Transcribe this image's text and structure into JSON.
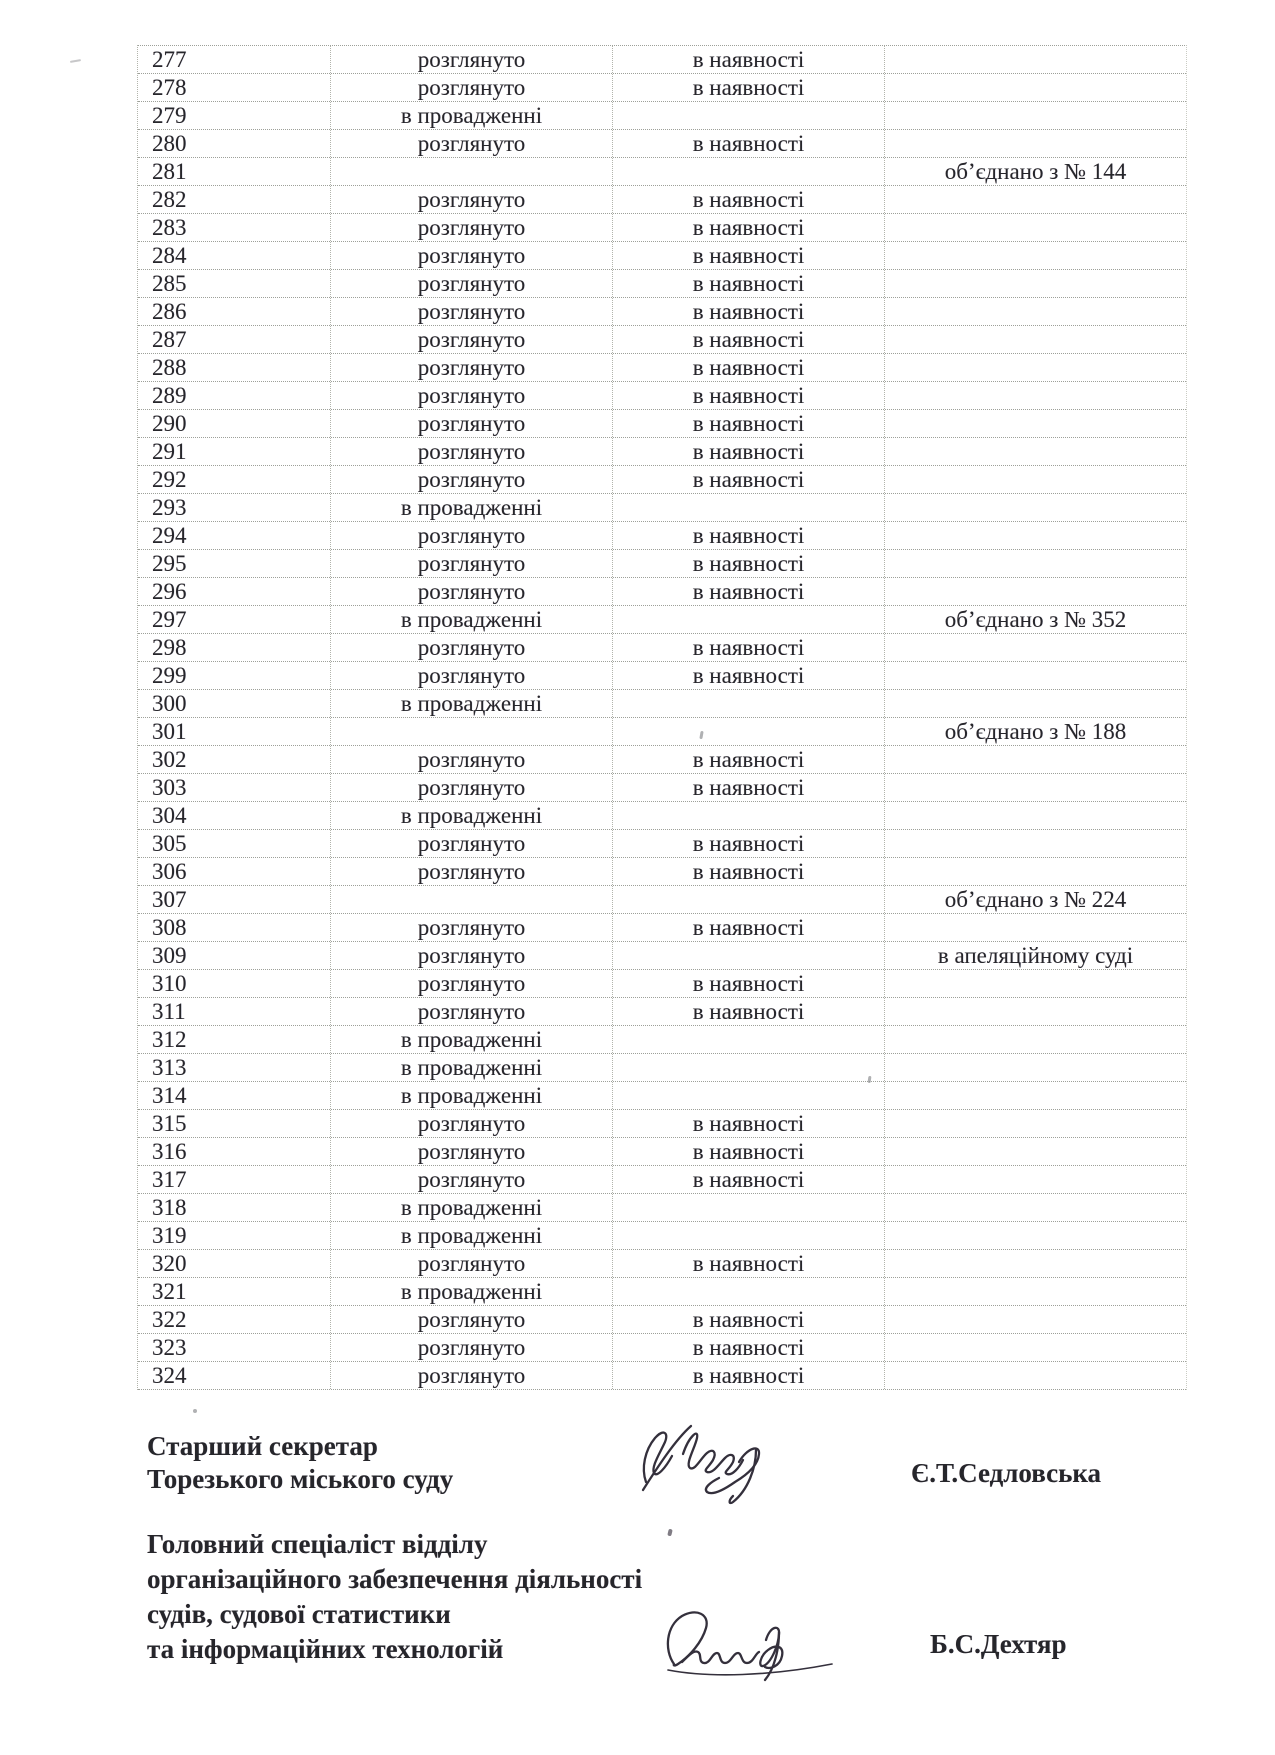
{
  "ink_color": "#26262b",
  "grid_color": "#9da099",
  "table": {
    "rows": [
      {
        "num": "277",
        "status": "розглянуто",
        "availability": "в наявності",
        "note": ""
      },
      {
        "num": "278",
        "status": "розглянуто",
        "availability": "в наявності",
        "note": ""
      },
      {
        "num": "279",
        "status": "в провадженні",
        "availability": "",
        "note": ""
      },
      {
        "num": "280",
        "status": "розглянуто",
        "availability": "в наявності",
        "note": ""
      },
      {
        "num": "281",
        "status": "",
        "availability": "",
        "note": "об’єднано з № 144"
      },
      {
        "num": "282",
        "status": "розглянуто",
        "availability": "в наявності",
        "note": ""
      },
      {
        "num": "283",
        "status": "розглянуто",
        "availability": "в наявності",
        "note": ""
      },
      {
        "num": "284",
        "status": "розглянуто",
        "availability": "в наявності",
        "note": ""
      },
      {
        "num": "285",
        "status": "розглянуто",
        "availability": "в наявності",
        "note": ""
      },
      {
        "num": "286",
        "status": "розглянуто",
        "availability": "в наявності",
        "note": ""
      },
      {
        "num": "287",
        "status": "розглянуто",
        "availability": "в наявності",
        "note": ""
      },
      {
        "num": "288",
        "status": "розглянуто",
        "availability": "в наявності",
        "note": ""
      },
      {
        "num": "289",
        "status": "розглянуто",
        "availability": "в наявності",
        "note": ""
      },
      {
        "num": "290",
        "status": "розглянуто",
        "availability": "в наявності",
        "note": ""
      },
      {
        "num": "291",
        "status": "розглянуто",
        "availability": "в наявності",
        "note": ""
      },
      {
        "num": "292",
        "status": "розглянуто",
        "availability": "в наявності",
        "note": ""
      },
      {
        "num": "293",
        "status": "в провадженні",
        "availability": "",
        "note": ""
      },
      {
        "num": "294",
        "status": "розглянуто",
        "availability": "в наявності",
        "note": ""
      },
      {
        "num": "295",
        "status": "розглянуто",
        "availability": "в наявності",
        "note": ""
      },
      {
        "num": "296",
        "status": "розглянуто",
        "availability": "в наявності",
        "note": ""
      },
      {
        "num": "297",
        "status": "в провадженні",
        "availability": "",
        "note": "об’єднано з № 352"
      },
      {
        "num": "298",
        "status": "розглянуто",
        "availability": "в наявності",
        "note": ""
      },
      {
        "num": "299",
        "status": "розглянуто",
        "availability": "в наявності",
        "note": ""
      },
      {
        "num": "300",
        "status": "в провадженні",
        "availability": "",
        "note": ""
      },
      {
        "num": "301",
        "status": "",
        "availability": "",
        "note": "об’єднано з № 188"
      },
      {
        "num": "302",
        "status": "розглянуто",
        "availability": "в наявності",
        "note": ""
      },
      {
        "num": "303",
        "status": "розглянуто",
        "availability": "в наявності",
        "note": ""
      },
      {
        "num": "304",
        "status": "в провадженні",
        "availability": "",
        "note": ""
      },
      {
        "num": "305",
        "status": "розглянуто",
        "availability": "в наявності",
        "note": ""
      },
      {
        "num": "306",
        "status": "розглянуто",
        "availability": "в наявності",
        "note": ""
      },
      {
        "num": "307",
        "status": "",
        "availability": "",
        "note": "об’єднано з № 224"
      },
      {
        "num": "308",
        "status": "розглянуто",
        "availability": "в наявності",
        "note": ""
      },
      {
        "num": "309",
        "status": "розглянуто",
        "availability": "",
        "note": "в апеляційному суді"
      },
      {
        "num": "310",
        "status": "розглянуто",
        "availability": "в наявності",
        "note": ""
      },
      {
        "num": "311",
        "status": "розглянуто",
        "availability": "в наявності",
        "note": ""
      },
      {
        "num": "312",
        "status": "в провадженні",
        "availability": "",
        "note": ""
      },
      {
        "num": "313",
        "status": "в провадженні",
        "availability": "",
        "note": ""
      },
      {
        "num": "314",
        "status": "в провадженні",
        "availability": "",
        "note": ""
      },
      {
        "num": "315",
        "status": "розглянуто",
        "availability": "в наявності",
        "note": ""
      },
      {
        "num": "316",
        "status": "розглянуто",
        "availability": "в наявності",
        "note": ""
      },
      {
        "num": "317",
        "status": "розглянуто",
        "availability": "в наявності",
        "note": ""
      },
      {
        "num": "318",
        "status": "в провадженні",
        "availability": "",
        "note": ""
      },
      {
        "num": "319",
        "status": "в провадженні",
        "availability": "",
        "note": ""
      },
      {
        "num": "320",
        "status": "розглянуто",
        "availability": "в наявності",
        "note": ""
      },
      {
        "num": "321",
        "status": "в провадженні",
        "availability": "",
        "note": ""
      },
      {
        "num": "322",
        "status": "розглянуто",
        "availability": "в наявності",
        "note": ""
      },
      {
        "num": "323",
        "status": "розглянуто",
        "availability": "в наявності",
        "note": ""
      },
      {
        "num": "324",
        "status": "розглянуто",
        "availability": "в наявності",
        "note": ""
      }
    ]
  },
  "signoff": [
    {
      "title_lines": [
        "Старший секретар",
        "Торезького міського суду"
      ],
      "name": "Є.Т.Седловська"
    },
    {
      "title_lines": [
        "Головний спеціаліст відділу",
        "організаційного забезпечення діяльності",
        "судів, судової статистики",
        "та інформаційних технологій"
      ],
      "name": "Б.С.Дехтяр"
    }
  ]
}
